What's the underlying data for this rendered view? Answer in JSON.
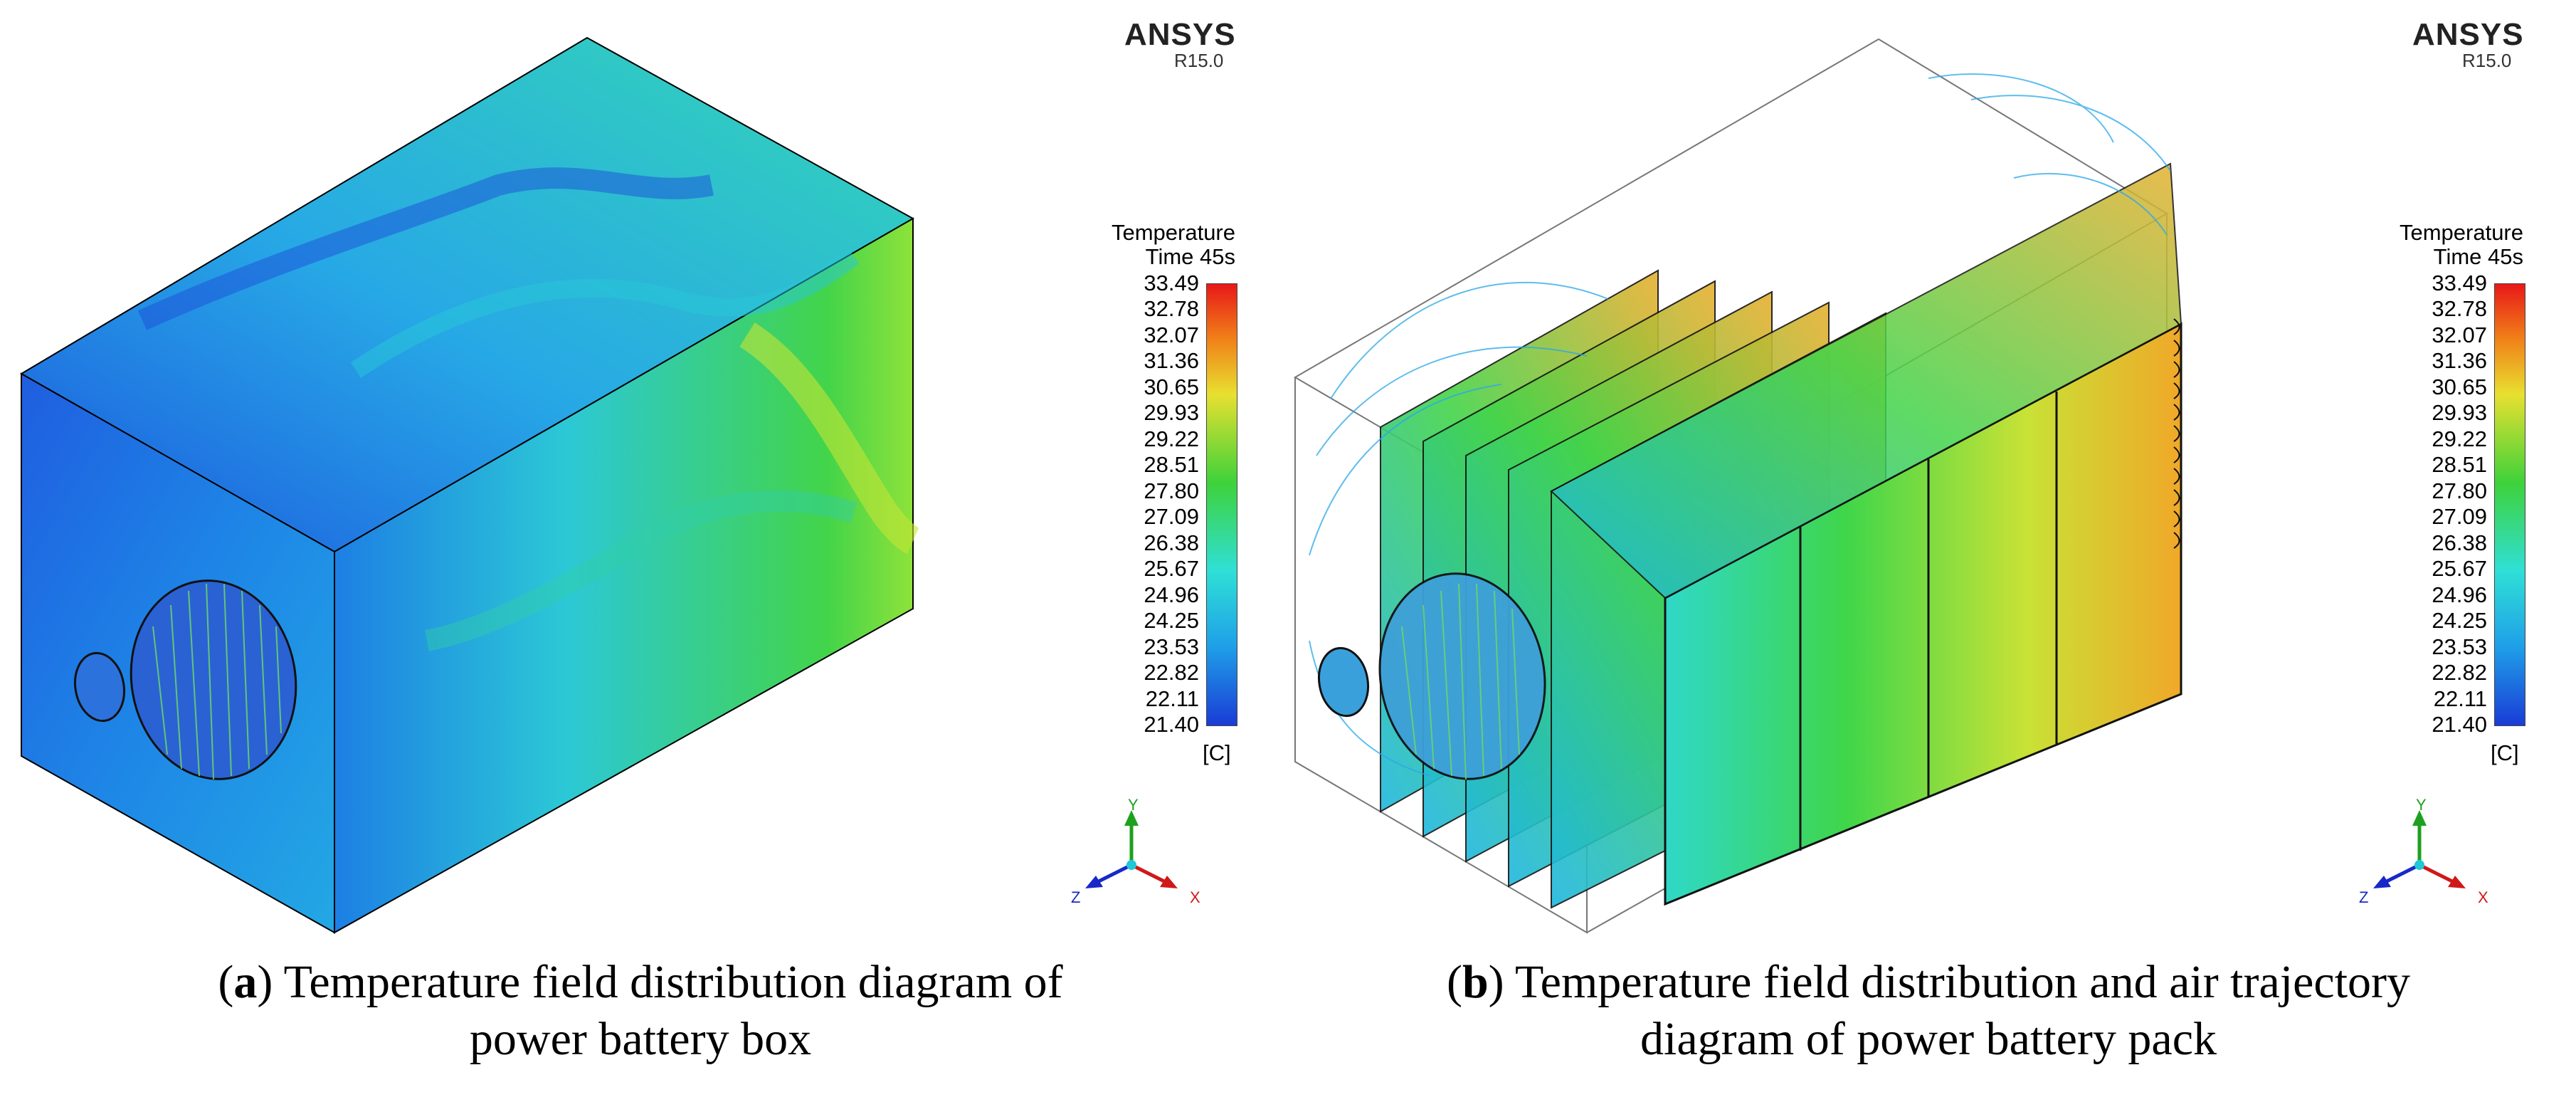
{
  "panel_a": {
    "ansys_logo": "ANSYS",
    "ansys_version": "R15.0",
    "legend_title_line1": "Temperature",
    "legend_title_line2": "Time 45s",
    "legend_unit": "[C]",
    "caption_letter": "a",
    "caption_line1_rest": " Temperature field distribution diagram of",
    "caption_line2": "power battery box",
    "axes": {
      "y": "Y",
      "x": "X",
      "z": "Z"
    }
  },
  "panel_b": {
    "ansys_logo": "ANSYS",
    "ansys_version": "R15.0",
    "legend_title_line1": "Temperature",
    "legend_title_line2": "Time 45s",
    "legend_unit": "[C]",
    "caption_letter": "b",
    "caption_line1_rest": " Temperature field distribution and air trajectory",
    "caption_line2": "diagram of power battery pack",
    "axes": {
      "y": "Y",
      "x": "X",
      "z": "Z"
    }
  },
  "legend_ticks": [
    "33.49",
    "32.78",
    "32.07",
    "31.36",
    "30.65",
    "29.93",
    "29.22",
    "28.51",
    "27.80",
    "27.09",
    "26.38",
    "25.67",
    "24.96",
    "24.25",
    "23.53",
    "22.82",
    "22.11",
    "21.40"
  ],
  "colors": {
    "cold": "#1a3cd6",
    "cool": "#1fa0e8",
    "mid": "#2fe0d6",
    "warm": "#3ed23a",
    "hot": "#e8e030",
    "max": "#e81818"
  }
}
